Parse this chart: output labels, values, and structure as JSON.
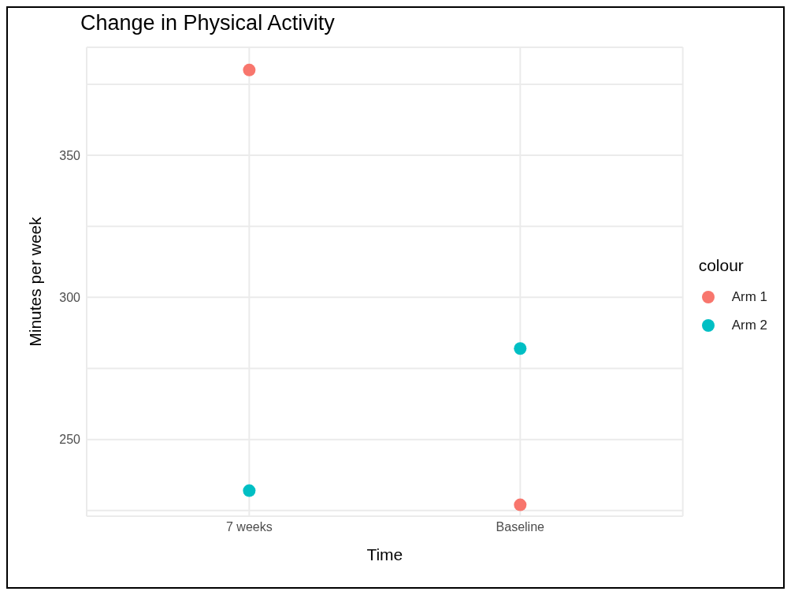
{
  "chart_data": {
    "type": "scatter",
    "title": "Change in Physical Activity",
    "xlabel": "Time",
    "ylabel": "Minutes per week",
    "legend_title": "colour",
    "categories": [
      "7 weeks",
      "Baseline"
    ],
    "series": [
      {
        "name": "Arm 1",
        "color": "#f8766d",
        "values": [
          380,
          227
        ]
      },
      {
        "name": "Arm 2",
        "color": "#00bfc4",
        "values": [
          232,
          282
        ]
      }
    ],
    "ylim": [
      223,
      388
    ],
    "yticks": [
      {
        "value": 225,
        "label": null
      },
      250,
      {
        "value": 275,
        "label": null
      },
      300,
      {
        "value": 325,
        "label": null
      },
      350,
      {
        "value": 375,
        "label": null
      }
    ],
    "grid": true,
    "legend": "right",
    "marker": "circle"
  }
}
